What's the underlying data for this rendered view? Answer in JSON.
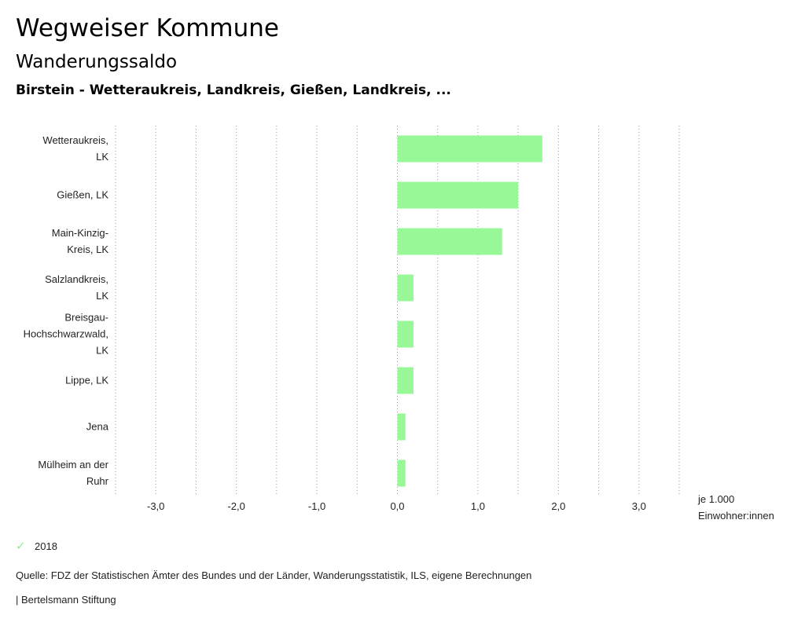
{
  "header": {
    "title": "Wegweiser Kommune",
    "subtitle": "Wanderungssaldo",
    "region": "Birstein - Wetteraukreis, Landkreis, Gießen, Landkreis, ..."
  },
  "chart_data": {
    "type": "bar",
    "orientation": "horizontal",
    "categories": [
      [
        "Wetteraukreis,",
        "LK"
      ],
      [
        "Gießen, LK"
      ],
      [
        "Main-Kinzig-",
        "Kreis, LK"
      ],
      [
        "Salzlandkreis,",
        "LK"
      ],
      [
        "Breisgau-",
        "Hochschwarzwald,",
        "LK"
      ],
      [
        "Lippe, LK"
      ],
      [
        "Jena"
      ],
      [
        "Mülheim an der",
        "Ruhr"
      ]
    ],
    "series": [
      {
        "name": "2018",
        "color": "#98f898",
        "values": [
          1.8,
          1.5,
          1.3,
          0.2,
          0.2,
          0.2,
          0.1,
          0.1
        ]
      }
    ],
    "xlim": [
      -3.5,
      3.5
    ],
    "ticks": [
      -3.0,
      -2.0,
      -1.0,
      0.0,
      1.0,
      2.0,
      3.0
    ],
    "tick_labels": [
      "-3,0",
      "-2,0",
      "-1,0",
      "0,0",
      "1,0",
      "2,0",
      "3,0"
    ],
    "unit": [
      "je 1.000",
      "Einwohner:innen"
    ],
    "grid": true
  },
  "legend": {
    "label": "2018",
    "icon": "check-icon",
    "color": "#98f898"
  },
  "footer": {
    "source": "Quelle: FDZ der Statistischen Ämter des Bundes und der Länder, Wanderungsstatistik, ILS, eigene Berechnungen",
    "brand": "| Bertelsmann Stiftung"
  }
}
